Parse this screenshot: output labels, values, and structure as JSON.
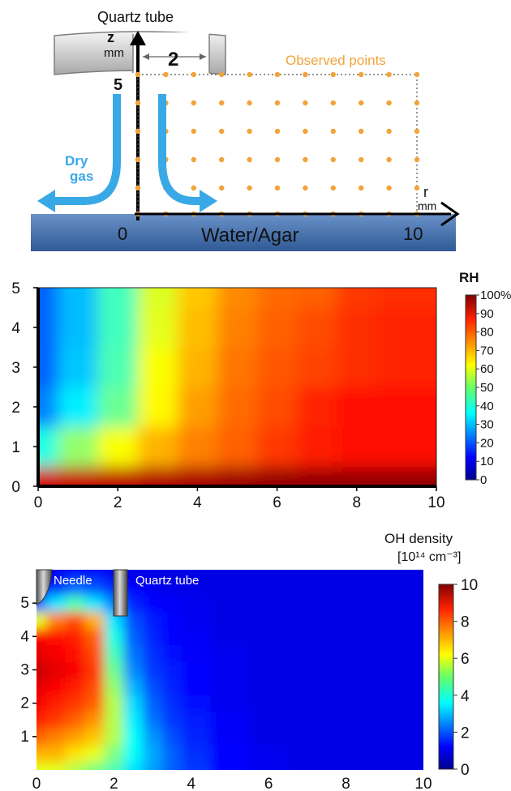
{
  "schematic": {
    "tube_label": "Quartz tube",
    "z_axis_label": "z",
    "z_axis_unit": "mm",
    "gap_label": "2",
    "z_max_label": "5",
    "observed_label": "Observed points",
    "gas_label_1": "Dry",
    "gas_label_2": "gas",
    "origin_label": "0",
    "surface_label": "Water/Agar",
    "r_max_label": "10",
    "r_axis_label": "r",
    "r_axis_unit": "mm",
    "colors": {
      "tube": "#bdbdbd",
      "gas": "#39a8e6",
      "points": "#f2a33a",
      "surface": "#4f78b0"
    }
  },
  "chart_data": [
    {
      "type": "heatmap",
      "title": "",
      "xlabel": "",
      "ylabel": "",
      "xlim": [
        0,
        10
      ],
      "ylim": [
        0,
        5
      ],
      "x_ticks": [
        "0",
        "2",
        "4",
        "6",
        "8",
        "10"
      ],
      "y_ticks": [
        "0",
        "1",
        "2",
        "3",
        "4",
        "5"
      ],
      "colorbar": {
        "title": "RH",
        "range": [
          0,
          100
        ],
        "labels": [
          "100%",
          "90",
          "80",
          "70",
          "60",
          "50",
          "40",
          "30",
          "20",
          "10",
          "0"
        ],
        "colormap": "jet"
      },
      "grid": {
        "x": [
          0,
          1,
          2,
          3,
          4,
          5,
          6,
          7,
          8,
          9,
          10
        ],
        "y": [
          0,
          1,
          2,
          3,
          4,
          5
        ],
        "rows": [
          [
            92,
            93,
            94,
            95,
            96,
            97,
            98,
            98,
            98,
            98,
            98
          ],
          [
            40,
            52,
            62,
            70,
            75,
            78,
            82,
            85,
            86,
            86,
            86
          ],
          [
            25,
            36,
            48,
            63,
            72,
            77,
            80,
            84,
            86,
            86,
            86
          ],
          [
            22,
            32,
            45,
            62,
            70,
            76,
            79,
            81,
            83,
            84,
            84
          ],
          [
            22,
            31,
            44,
            60,
            69,
            75,
            78,
            80,
            83,
            84,
            84
          ],
          [
            22,
            31,
            44,
            59,
            68,
            74,
            77,
            78,
            82,
            83,
            83
          ]
        ]
      }
    },
    {
      "type": "heatmap",
      "title": "",
      "xlabel": "",
      "ylabel": "",
      "xlim": [
        0,
        10
      ],
      "ylim": [
        0,
        6
      ],
      "x_ticks": [
        "0",
        "2",
        "4",
        "6",
        "8",
        "10"
      ],
      "y_ticks": [
        "1",
        "2",
        "3",
        "4",
        "5"
      ],
      "colorbar": {
        "title": "OH density",
        "unit": "[10¹⁴ cm⁻³]",
        "range": [
          0,
          10
        ],
        "labels": [
          "10",
          "8",
          "6",
          "4",
          "2",
          "0"
        ],
        "colormap": "jet"
      },
      "annotations": [
        "Needle",
        "Quartz tube"
      ],
      "grid": {
        "x": [
          0,
          0.5,
          1,
          1.5,
          2,
          2.5,
          3,
          3.5,
          4,
          5,
          6,
          7,
          8,
          9,
          10
        ],
        "y": [
          0,
          0.5,
          1,
          1.5,
          2,
          2.5,
          3,
          3.5,
          4,
          4.5,
          5,
          5.5,
          6
        ],
        "rows": [
          [
            6.0,
            6.0,
            5.5,
            5.0,
            4.5,
            3.5,
            2.8,
            2.2,
            1.8,
            1.3,
            1.1,
            1.0,
            1.0,
            1.0,
            1.0
          ],
          [
            7.0,
            7.0,
            6.5,
            6.0,
            5.0,
            3.8,
            2.9,
            2.2,
            1.7,
            1.3,
            1.1,
            1.0,
            1.0,
            1.0,
            1.0
          ],
          [
            7.8,
            7.5,
            7.2,
            6.8,
            5.5,
            3.8,
            2.7,
            2.0,
            1.6,
            1.2,
            1.0,
            1.0,
            1.0,
            1.0,
            1.0
          ],
          [
            8.5,
            8.2,
            7.8,
            7.3,
            5.5,
            3.6,
            2.4,
            1.8,
            1.5,
            1.2,
            1.0,
            1.0,
            1.0,
            1.0,
            1.0
          ],
          [
            8.8,
            8.5,
            8.2,
            7.8,
            5.5,
            3.4,
            2.2,
            1.7,
            1.4,
            1.1,
            1.0,
            1.0,
            1.0,
            1.0,
            1.0
          ],
          [
            9.0,
            8.8,
            8.5,
            8.0,
            5.2,
            3.0,
            2.0,
            1.6,
            1.3,
            1.1,
            1.0,
            1.0,
            1.0,
            1.0,
            1.0
          ],
          [
            9.3,
            9.0,
            8.8,
            8.2,
            4.8,
            2.6,
            1.8,
            1.5,
            1.3,
            1.1,
            1.0,
            1.0,
            1.0,
            1.0,
            1.0
          ],
          [
            9.0,
            8.8,
            8.6,
            8.0,
            4.4,
            2.4,
            1.7,
            1.4,
            1.2,
            1.1,
            1.0,
            1.0,
            1.0,
            1.0,
            1.0
          ],
          [
            8.8,
            8.6,
            8.5,
            7.8,
            4.0,
            2.2,
            1.6,
            1.3,
            1.2,
            1.0,
            1.0,
            1.0,
            1.0,
            1.0,
            1.0
          ],
          [
            6.0,
            7.5,
            8.0,
            7.0,
            3.5,
            2.0,
            1.5,
            1.3,
            1.1,
            1.0,
            1.0,
            1.0,
            1.0,
            1.0,
            1.0
          ],
          [
            2.0,
            3.5,
            4.5,
            3.5,
            2.5,
            1.6,
            1.3,
            1.2,
            1.1,
            1.0,
            1.0,
            1.0,
            1.0,
            1.0,
            1.0
          ],
          [
            1.0,
            1.5,
            2.2,
            2.0,
            1.6,
            1.2,
            1.1,
            1.0,
            1.0,
            1.0,
            1.0,
            1.0,
            1.0,
            1.0,
            1.0
          ],
          [
            1.0,
            1.1,
            1.2,
            1.2,
            1.1,
            1.0,
            1.0,
            1.0,
            1.0,
            1.0,
            1.0,
            1.0,
            1.0,
            1.0,
            1.0
          ]
        ]
      }
    }
  ]
}
